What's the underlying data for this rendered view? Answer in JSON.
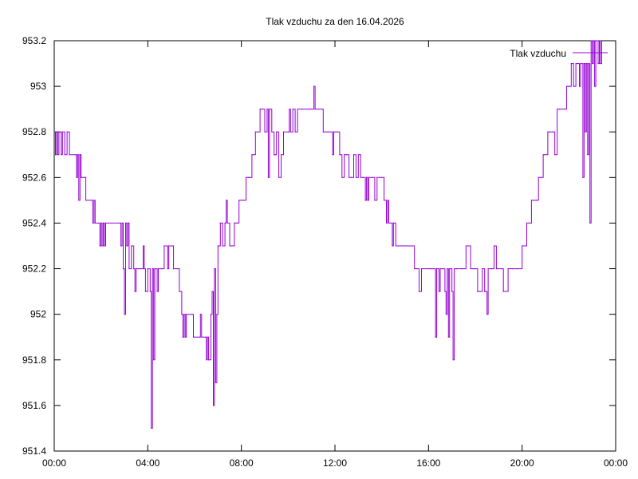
{
  "chart_data": {
    "type": "line",
    "title": "Tlak vzduchu za den 16.04.2026",
    "xlabel": "",
    "ylabel": "",
    "x_unit": "hours since 00:00",
    "xlim": [
      0,
      24
    ],
    "ylim": [
      951.4,
      953.2
    ],
    "x_ticks": [
      {
        "value": 0,
        "label": "00:00"
      },
      {
        "value": 4,
        "label": "04:00"
      },
      {
        "value": 8,
        "label": "08:00"
      },
      {
        "value": 12,
        "label": "12:00"
      },
      {
        "value": 16,
        "label": "16:00"
      },
      {
        "value": 20,
        "label": "20:00"
      },
      {
        "value": 24,
        "label": "00:00"
      }
    ],
    "y_ticks": [
      {
        "value": 951.4,
        "label": "951.4"
      },
      {
        "value": 951.6,
        "label": "951.6"
      },
      {
        "value": 951.8,
        "label": "951.8"
      },
      {
        "value": 952.0,
        "label": "952"
      },
      {
        "value": 952.2,
        "label": "952.2"
      },
      {
        "value": 952.4,
        "label": "952.4"
      },
      {
        "value": 952.6,
        "label": "952.6"
      },
      {
        "value": 952.8,
        "label": "952.8"
      },
      {
        "value": 953.0,
        "label": "953"
      },
      {
        "value": 953.2,
        "label": "953.2"
      }
    ],
    "grid": false,
    "legend_position": "top-right",
    "series": [
      {
        "name": "Tlak vzduchu",
        "color": "#9400d3",
        "step": true,
        "points": [
          [
            0.0,
            952.8
          ],
          [
            0.05,
            952.7
          ],
          [
            0.1,
            952.8
          ],
          [
            0.15,
            952.7
          ],
          [
            0.2,
            952.8
          ],
          [
            0.3,
            952.7
          ],
          [
            0.35,
            952.8
          ],
          [
            0.45,
            952.7
          ],
          [
            0.55,
            952.8
          ],
          [
            0.65,
            952.7
          ],
          [
            0.9,
            952.7
          ],
          [
            0.95,
            952.6
          ],
          [
            1.0,
            952.7
          ],
          [
            1.05,
            952.5
          ],
          [
            1.1,
            952.7
          ],
          [
            1.15,
            952.6
          ],
          [
            1.3,
            952.6
          ],
          [
            1.35,
            952.5
          ],
          [
            1.6,
            952.5
          ],
          [
            1.65,
            952.4
          ],
          [
            1.7,
            952.5
          ],
          [
            1.75,
            952.4
          ],
          [
            1.9,
            952.4
          ],
          [
            1.95,
            952.3
          ],
          [
            2.0,
            952.4
          ],
          [
            2.05,
            952.3
          ],
          [
            2.1,
            952.4
          ],
          [
            2.15,
            952.3
          ],
          [
            2.2,
            952.4
          ],
          [
            2.8,
            952.4
          ],
          [
            2.85,
            952.3
          ],
          [
            2.9,
            952.4
          ],
          [
            2.95,
            952.2
          ],
          [
            3.0,
            952.0
          ],
          [
            3.05,
            952.4
          ],
          [
            3.1,
            952.3
          ],
          [
            3.15,
            952.4
          ],
          [
            3.2,
            952.2
          ],
          [
            3.3,
            952.3
          ],
          [
            3.4,
            952.2
          ],
          [
            3.45,
            952.1
          ],
          [
            3.5,
            952.2
          ],
          [
            3.6,
            952.2
          ],
          [
            3.65,
            952.2
          ],
          [
            3.8,
            952.3
          ],
          [
            3.85,
            952.2
          ],
          [
            3.9,
            952.1
          ],
          [
            4.0,
            952.2
          ],
          [
            4.1,
            952.1
          ],
          [
            4.15,
            951.5
          ],
          [
            4.2,
            952.2
          ],
          [
            4.25,
            951.8
          ],
          [
            4.3,
            952.2
          ],
          [
            4.4,
            952.1
          ],
          [
            4.45,
            952.2
          ],
          [
            4.6,
            952.2
          ],
          [
            4.7,
            952.3
          ],
          [
            4.85,
            952.2
          ],
          [
            4.9,
            952.3
          ],
          [
            5.05,
            952.3
          ],
          [
            5.1,
            952.2
          ],
          [
            5.3,
            952.2
          ],
          [
            5.35,
            952.1
          ],
          [
            5.45,
            952.0
          ],
          [
            5.5,
            951.9
          ],
          [
            5.55,
            952.0
          ],
          [
            5.6,
            951.9
          ],
          [
            5.65,
            952.0
          ],
          [
            5.9,
            952.0
          ],
          [
            5.95,
            951.9
          ],
          [
            6.0,
            951.9
          ],
          [
            6.2,
            951.9
          ],
          [
            6.25,
            952.0
          ],
          [
            6.3,
            951.9
          ],
          [
            6.45,
            951.9
          ],
          [
            6.5,
            951.8
          ],
          [
            6.55,
            951.9
          ],
          [
            6.6,
            951.8
          ],
          [
            6.7,
            952.0
          ],
          [
            6.75,
            952.1
          ],
          [
            6.8,
            951.6
          ],
          [
            6.85,
            952.2
          ],
          [
            6.9,
            951.7
          ],
          [
            6.95,
            952.0
          ],
          [
            7.0,
            952.3
          ],
          [
            7.1,
            952.4
          ],
          [
            7.2,
            952.3
          ],
          [
            7.3,
            952.4
          ],
          [
            7.35,
            952.5
          ],
          [
            7.4,
            952.4
          ],
          [
            7.5,
            952.3
          ],
          [
            7.6,
            952.3
          ],
          [
            7.7,
            952.4
          ],
          [
            7.8,
            952.4
          ],
          [
            7.9,
            952.5
          ],
          [
            8.0,
            952.5
          ],
          [
            8.1,
            952.5
          ],
          [
            8.2,
            952.6
          ],
          [
            8.3,
            952.6
          ],
          [
            8.35,
            952.6
          ],
          [
            8.45,
            952.7
          ],
          [
            8.55,
            952.7
          ],
          [
            8.6,
            952.8
          ],
          [
            8.7,
            952.8
          ],
          [
            8.8,
            952.9
          ],
          [
            8.9,
            952.9
          ],
          [
            9.0,
            952.8
          ],
          [
            9.1,
            952.9
          ],
          [
            9.15,
            952.6
          ],
          [
            9.2,
            952.9
          ],
          [
            9.3,
            952.8
          ],
          [
            9.4,
            952.7
          ],
          [
            9.45,
            952.7
          ],
          [
            9.5,
            952.8
          ],
          [
            9.6,
            952.6
          ],
          [
            9.7,
            952.7
          ],
          [
            9.8,
            952.8
          ],
          [
            10.0,
            952.8
          ],
          [
            10.05,
            952.9
          ],
          [
            10.1,
            952.8
          ],
          [
            10.2,
            952.9
          ],
          [
            10.3,
            952.8
          ],
          [
            10.4,
            952.9
          ],
          [
            10.6,
            952.9
          ],
          [
            10.8,
            952.9
          ],
          [
            10.9,
            952.9
          ],
          [
            11.0,
            952.9
          ],
          [
            11.1,
            953.0
          ],
          [
            11.15,
            952.9
          ],
          [
            11.3,
            952.9
          ],
          [
            11.45,
            952.9
          ],
          [
            11.5,
            952.8
          ],
          [
            11.6,
            952.8
          ],
          [
            11.7,
            952.8
          ],
          [
            11.8,
            952.8
          ],
          [
            11.9,
            952.7
          ],
          [
            11.95,
            952.8
          ],
          [
            12.0,
            952.8
          ],
          [
            12.1,
            952.8
          ],
          [
            12.2,
            952.7
          ],
          [
            12.3,
            952.6
          ],
          [
            12.4,
            952.7
          ],
          [
            12.5,
            952.7
          ],
          [
            12.6,
            952.6
          ],
          [
            12.7,
            952.6
          ],
          [
            12.8,
            952.7
          ],
          [
            12.9,
            952.6
          ],
          [
            13.0,
            952.7
          ],
          [
            13.1,
            952.6
          ],
          [
            13.2,
            952.6
          ],
          [
            13.3,
            952.5
          ],
          [
            13.35,
            952.6
          ],
          [
            13.4,
            952.5
          ],
          [
            13.45,
            952.6
          ],
          [
            13.6,
            952.6
          ],
          [
            13.7,
            952.5
          ],
          [
            13.8,
            952.6
          ],
          [
            14.0,
            952.6
          ],
          [
            14.1,
            952.5
          ],
          [
            14.2,
            952.4
          ],
          [
            14.25,
            952.5
          ],
          [
            14.3,
            952.4
          ],
          [
            14.45,
            952.3
          ],
          [
            14.5,
            952.4
          ],
          [
            14.6,
            952.3
          ],
          [
            14.8,
            952.3
          ],
          [
            14.9,
            952.3
          ],
          [
            15.0,
            952.3
          ],
          [
            15.2,
            952.3
          ],
          [
            15.4,
            952.2
          ],
          [
            15.5,
            952.2
          ],
          [
            15.6,
            952.1
          ],
          [
            15.7,
            952.2
          ],
          [
            15.8,
            952.2
          ],
          [
            16.0,
            952.2
          ],
          [
            16.1,
            952.2
          ],
          [
            16.2,
            952.2
          ],
          [
            16.3,
            951.9
          ],
          [
            16.35,
            952.2
          ],
          [
            16.45,
            952.1
          ],
          [
            16.5,
            952.2
          ],
          [
            16.6,
            952.2
          ],
          [
            16.7,
            952.1
          ],
          [
            16.75,
            952.0
          ],
          [
            16.8,
            952.2
          ],
          [
            16.85,
            951.9
          ],
          [
            16.9,
            952.2
          ],
          [
            17.0,
            952.1
          ],
          [
            17.05,
            951.8
          ],
          [
            17.1,
            952.2
          ],
          [
            17.2,
            952.2
          ],
          [
            17.4,
            952.2
          ],
          [
            17.5,
            952.2
          ],
          [
            17.6,
            952.3
          ],
          [
            17.8,
            952.2
          ],
          [
            17.9,
            952.2
          ],
          [
            18.0,
            952.2
          ],
          [
            18.1,
            952.1
          ],
          [
            18.2,
            952.1
          ],
          [
            18.3,
            952.2
          ],
          [
            18.4,
            952.1
          ],
          [
            18.5,
            952.0
          ],
          [
            18.55,
            952.2
          ],
          [
            18.7,
            952.2
          ],
          [
            18.8,
            952.3
          ],
          [
            18.9,
            952.2
          ],
          [
            19.1,
            952.2
          ],
          [
            19.2,
            952.1
          ],
          [
            19.4,
            952.2
          ],
          [
            19.6,
            952.2
          ],
          [
            19.8,
            952.2
          ],
          [
            20.0,
            952.3
          ],
          [
            20.2,
            952.4
          ],
          [
            20.3,
            952.4
          ],
          [
            20.4,
            952.5
          ],
          [
            20.5,
            952.5
          ],
          [
            20.6,
            952.5
          ],
          [
            20.7,
            952.6
          ],
          [
            20.8,
            952.6
          ],
          [
            20.9,
            952.7
          ],
          [
            21.0,
            952.7
          ],
          [
            21.1,
            952.8
          ],
          [
            21.2,
            952.8
          ],
          [
            21.3,
            952.8
          ],
          [
            21.4,
            952.7
          ],
          [
            21.5,
            952.9
          ],
          [
            21.6,
            952.9
          ],
          [
            21.8,
            952.9
          ],
          [
            21.9,
            953.0
          ],
          [
            22.0,
            953.0
          ],
          [
            22.1,
            953.1
          ],
          [
            22.2,
            953.0
          ],
          [
            22.3,
            953.1
          ],
          [
            22.4,
            953.1
          ],
          [
            22.45,
            953.0
          ],
          [
            22.5,
            953.1
          ],
          [
            22.6,
            952.6
          ],
          [
            22.65,
            953.1
          ],
          [
            22.7,
            952.8
          ],
          [
            22.75,
            953.1
          ],
          [
            22.8,
            952.7
          ],
          [
            22.85,
            953.1
          ],
          [
            22.9,
            952.4
          ],
          [
            22.95,
            953.2
          ],
          [
            23.0,
            953.1
          ],
          [
            23.05,
            953.2
          ],
          [
            23.1,
            953.0
          ],
          [
            23.15,
            953.2
          ],
          [
            23.25,
            953.1
          ],
          [
            23.3,
            953.2
          ],
          [
            23.35,
            953.1
          ],
          [
            23.4,
            953.2
          ]
        ]
      }
    ]
  }
}
